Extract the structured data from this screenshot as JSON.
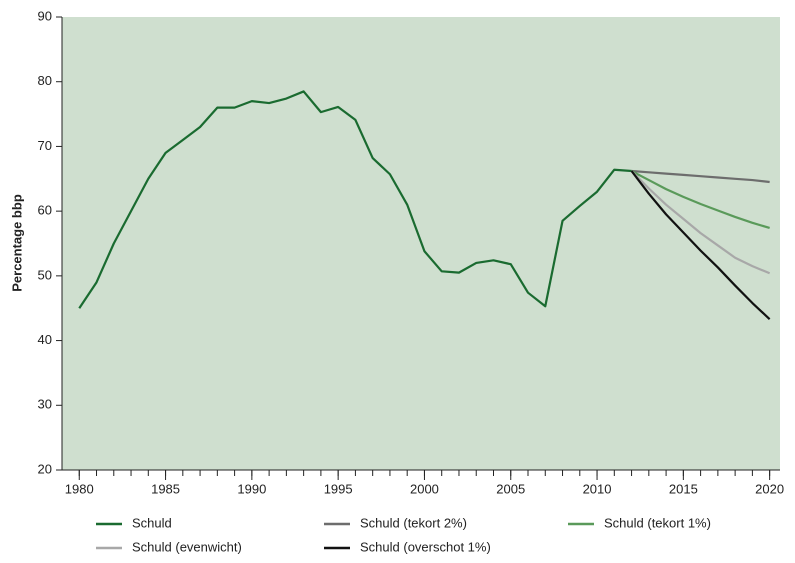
{
  "chart_data": {
    "type": "line",
    "y_label": "Percentage bbp",
    "xlim": [
      1979,
      2020.6
    ],
    "ylim": [
      20,
      90
    ],
    "xticks": [
      1980,
      1985,
      1990,
      1995,
      2000,
      2005,
      2010,
      2015,
      2020
    ],
    "xminorticks": [
      1980,
      1981,
      1982,
      1983,
      1984,
      1985,
      1986,
      1987,
      1988,
      1989,
      1990,
      1991,
      1992,
      1993,
      1994,
      1995,
      1996,
      1997,
      1998,
      1999,
      2000,
      2001,
      2002,
      2003,
      2004,
      2005,
      2006,
      2007,
      2008,
      2009,
      2010,
      2011,
      2012,
      2013,
      2014,
      2015,
      2016,
      2017,
      2018,
      2019,
      2020
    ],
    "yticks": [
      20,
      30,
      40,
      50,
      60,
      70,
      80,
      90
    ],
    "background": "#cfdfcf",
    "series": [
      {
        "name": "Schuld",
        "color": "#1a6b30",
        "x": [
          1980,
          1981,
          1982,
          1983,
          1984,
          1985,
          1986,
          1987,
          1988,
          1989,
          1990,
          1991,
          1992,
          1993,
          1994,
          1995,
          1996,
          1997,
          1998,
          1999,
          2000,
          2001,
          2002,
          2003,
          2004,
          2005,
          2006,
          2007,
          2008,
          2009,
          2010,
          2011,
          2012
        ],
        "values": [
          45,
          49,
          55,
          60,
          65,
          69,
          71,
          73,
          76,
          76,
          77,
          76.7,
          77.4,
          78.5,
          75.3,
          76.1,
          74.1,
          68.2,
          65.7,
          61,
          53.8,
          50.7,
          50.5,
          52,
          52.4,
          51.8,
          47.4,
          45.3,
          58.5,
          60.8,
          63,
          66.4,
          66.2
        ]
      },
      {
        "name": "Schuld (tekort 2%)",
        "color": "#6d6d6d",
        "x": [
          2012,
          2013,
          2014,
          2015,
          2016,
          2017,
          2018,
          2019,
          2020
        ],
        "values": [
          66.2,
          66,
          65.8,
          65.6,
          65.4,
          65.2,
          65,
          64.8,
          64.5
        ]
      },
      {
        "name": "Schuld (tekort 1%)",
        "color": "#5a9a5a",
        "x": [
          2012,
          2013,
          2014,
          2015,
          2016,
          2017,
          2018,
          2019,
          2020
        ],
        "values": [
          66.2,
          64.8,
          63.4,
          62.2,
          61.1,
          60.1,
          59.1,
          58.2,
          57.4
        ]
      },
      {
        "name": "Schuld (evenwicht)",
        "color": "#a8a8a8",
        "x": [
          2012,
          2013,
          2014,
          2015,
          2016,
          2017,
          2018,
          2019,
          2020
        ],
        "values": [
          66.2,
          63.5,
          61,
          58.8,
          56.6,
          54.7,
          52.8,
          51.5,
          50.4
        ]
      },
      {
        "name": "Schuld (overschot 1%)",
        "color": "#111111",
        "x": [
          2012,
          2013,
          2014,
          2015,
          2016,
          2017,
          2018,
          2019,
          2020
        ],
        "values": [
          66.2,
          62.7,
          59.5,
          56.7,
          53.9,
          51.3,
          48.5,
          45.8,
          43.3
        ]
      }
    ]
  }
}
